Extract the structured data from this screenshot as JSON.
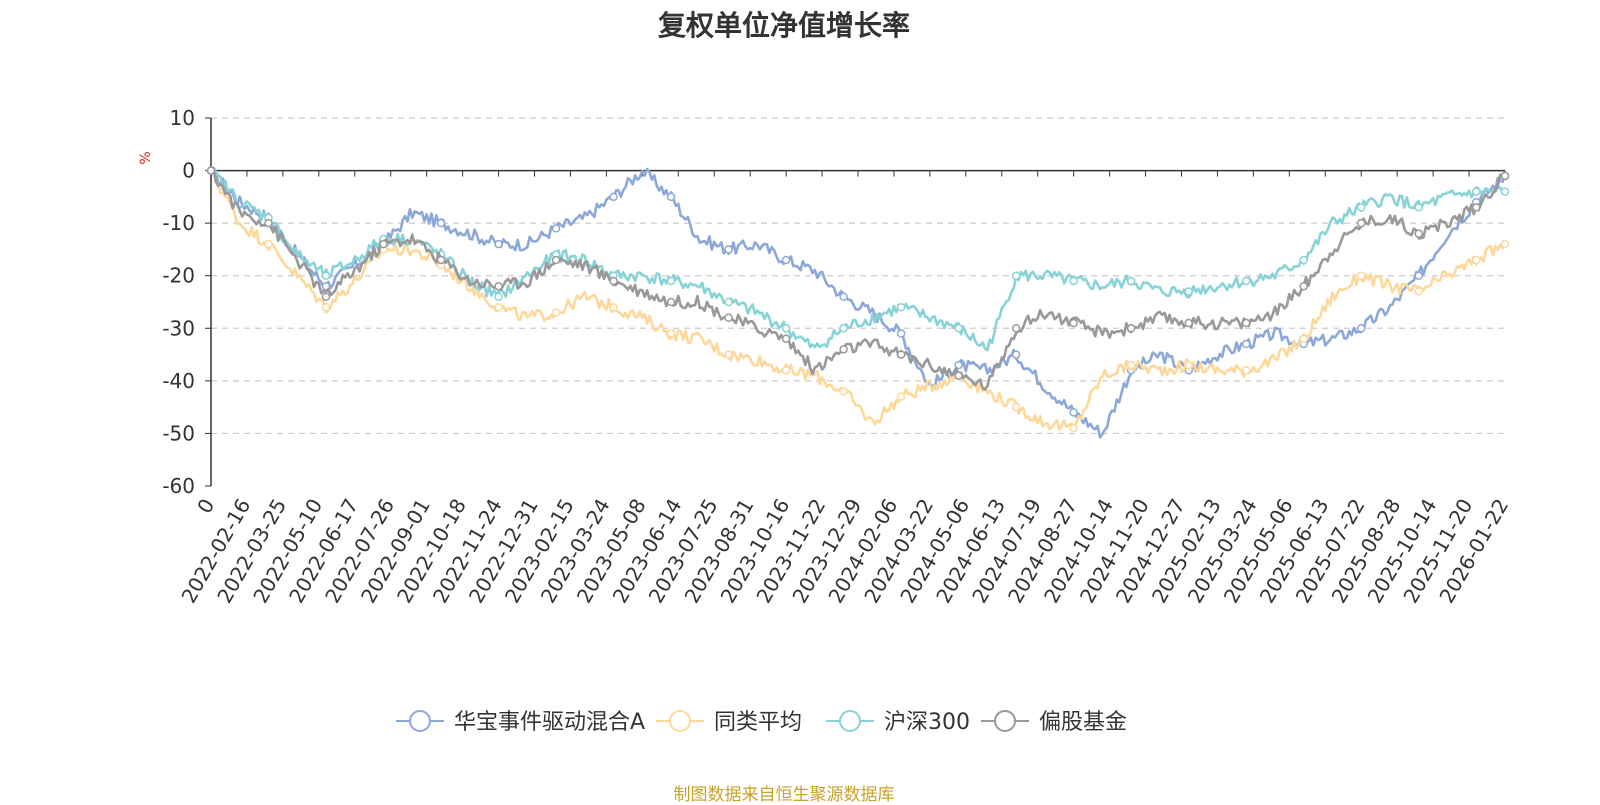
{
  "chart_data": {
    "type": "line",
    "title": "复权单位净值增长率",
    "ylabel": "%",
    "xlabel": "",
    "ylim": [
      -60,
      10
    ],
    "yticks": [
      10,
      0,
      -10,
      -20,
      -30,
      -40,
      -50,
      -60
    ],
    "x_tick_labels": [
      "0",
      "2022-02-16",
      "2022-03-25",
      "2022-05-10",
      "2022-06-17",
      "2022-07-26",
      "2022-09-01",
      "2022-10-18",
      "2022-11-24",
      "2022-12-31",
      "2023-02-15",
      "2023-03-24",
      "2023-05-08",
      "2023-06-14",
      "2023-07-25",
      "2023-08-31",
      "2023-10-16",
      "2023-11-22",
      "2023-12-29",
      "2024-02-06",
      "2024-03-22",
      "2024-05-06",
      "2024-06-13",
      "2024-07-19",
      "2024-08-27",
      "2024-10-14",
      "2024-11-20",
      "2024-12-27",
      "2025-02-13",
      "2025-03-24",
      "2025-05-06",
      "2025-06-13",
      "2025-07-22",
      "2025-08-28",
      "2025-10-14",
      "2025-11-20",
      "2026-01-22"
    ],
    "grid": true,
    "legend_position": "bottom",
    "series": [
      {
        "name": "华宝事件驱动混合A",
        "color": "#8ca8d8",
        "values": [
          0,
          -6,
          -9,
          -16,
          -22,
          -18,
          -14,
          -8,
          -10,
          -12,
          -14,
          -14,
          -11,
          -9,
          -5,
          0,
          -5,
          -13,
          -15,
          -14,
          -17,
          -19,
          -24,
          -27,
          -31,
          -41,
          -37,
          -38,
          -35,
          -41,
          -46,
          -50,
          -38,
          -35,
          -38,
          -35,
          -33,
          -31,
          -33,
          -32,
          -30,
          -26,
          -20,
          -12,
          -6,
          -1
        ]
      },
      {
        "name": "同类平均",
        "color": "#fdd89a",
        "values": [
          0,
          -10,
          -14,
          -20,
          -26,
          -21,
          -15,
          -15,
          -18,
          -22,
          -26,
          -28,
          -27,
          -24,
          -26,
          -28,
          -31,
          -32,
          -35,
          -36,
          -38,
          -39,
          -42,
          -48,
          -43,
          -41,
          -39,
          -42,
          -45,
          -48,
          -49,
          -39,
          -37,
          -38,
          -37,
          -38,
          -38,
          -36,
          -32,
          -24,
          -20,
          -22,
          -23,
          -20,
          -17,
          -14
        ]
      },
      {
        "name": "沪深300",
        "color": "#88d3d7",
        "values": [
          0,
          -6,
          -9,
          -16,
          -20,
          -17,
          -13,
          -13,
          -16,
          -21,
          -24,
          -20,
          -16,
          -17,
          -20,
          -20,
          -21,
          -22,
          -25,
          -27,
          -30,
          -34,
          -30,
          -28,
          -26,
          -28,
          -30,
          -34,
          -20,
          -20,
          -21,
          -22,
          -21,
          -23,
          -23,
          -22,
          -21,
          -20,
          -17,
          -10,
          -7,
          -5,
          -7,
          -5,
          -4,
          -4
        ]
      },
      {
        "name": "偏股基金",
        "color": "#999999",
        "values": [
          0,
          -8,
          -10,
          -17,
          -24,
          -19,
          -14,
          -13,
          -17,
          -21,
          -22,
          -21,
          -17,
          -18,
          -21,
          -23,
          -25,
          -25,
          -28,
          -30,
          -32,
          -38,
          -34,
          -33,
          -35,
          -37,
          -39,
          -41,
          -30,
          -27,
          -29,
          -31,
          -30,
          -28,
          -29,
          -29,
          -29,
          -27,
          -22,
          -15,
          -10,
          -9,
          -12,
          -10,
          -7,
          -1
        ]
      }
    ]
  },
  "source_note": "制图数据来自恒生聚源数据库"
}
